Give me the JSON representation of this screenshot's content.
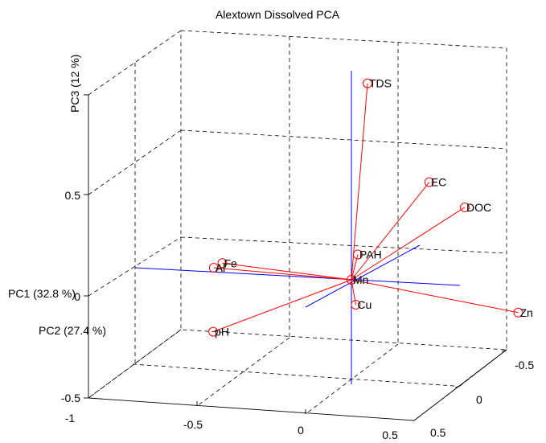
{
  "chart_data": {
    "type": "scatter",
    "subtype": "3d-biplot",
    "title": "Alextown Dissolved PCA",
    "axes": {
      "x": {
        "label": "PC1  (32.8 %)",
        "ticks": [
          "-1",
          "-0.5",
          "0",
          "0.5"
        ]
      },
      "y": {
        "label": "PC2  (27.4 %)",
        "ticks": [
          "-0.5",
          "0",
          "0.5"
        ]
      },
      "z": {
        "label": "PC3  (12 %)",
        "ticks": [
          "-0.5",
          "0",
          "0.5"
        ]
      }
    },
    "grid": true,
    "point_color": "#ff0000",
    "axis_color": "#0000ff",
    "points": [
      {
        "label": "TDS",
        "x": 0.05,
        "y": 0.05,
        "z": 0.95
      },
      {
        "label": "EC",
        "x": 0.32,
        "y": 0.08,
        "z": 0.48
      },
      {
        "label": "DOC",
        "x": 0.45,
        "y": 0.15,
        "z": 0.35
      },
      {
        "label": "PAH",
        "x": 0.02,
        "y": 0.02,
        "z": 0.12
      },
      {
        "label": "Fe",
        "x": -0.45,
        "y": -0.3,
        "z": 0.12
      },
      {
        "label": "Al",
        "x": -0.48,
        "y": -0.32,
        "z": 0.1
      },
      {
        "label": "Mn",
        "x": 0.0,
        "y": 0.0,
        "z": 0.0
      },
      {
        "label": "Cu",
        "x": 0.02,
        "y": 0.0,
        "z": -0.12
      },
      {
        "label": "pH",
        "x": -0.55,
        "y": -0.18,
        "z": -0.25
      },
      {
        "label": "Zn",
        "x": 0.6,
        "y": 0.35,
        "z": -0.2
      }
    ]
  }
}
